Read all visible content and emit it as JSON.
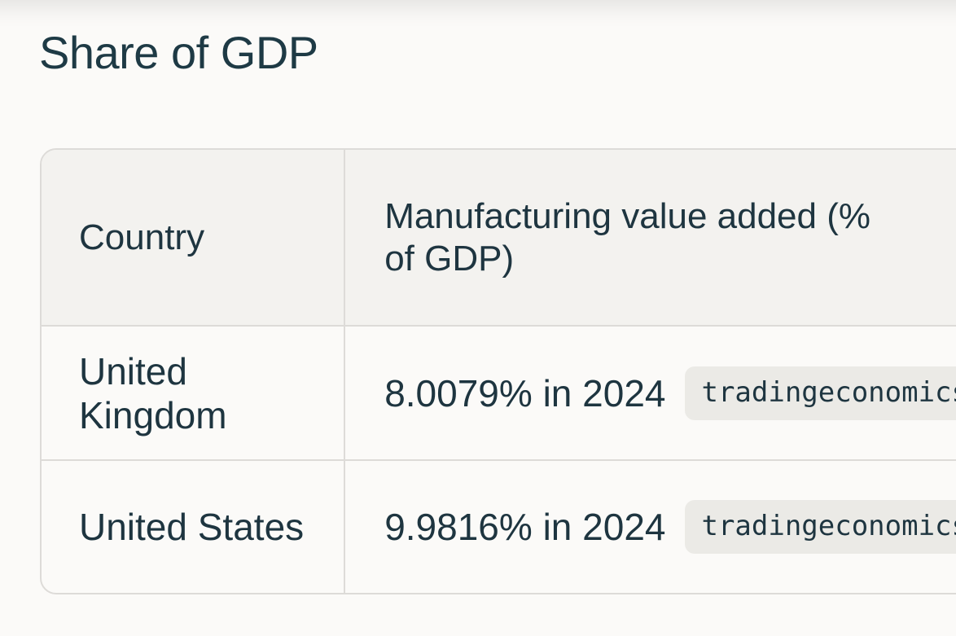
{
  "section": {
    "title": "Share of GDP"
  },
  "table": {
    "headers": {
      "country": "Country",
      "value": "Manufacturing value added (% of GDP)"
    },
    "rows": [
      {
        "country": "United Kingdom",
        "value": "8.0079% in 2024",
        "source": "tradingeconomics"
      },
      {
        "country": "United States",
        "value": "9.9816% in 2024",
        "source": "tradingeconomics"
      }
    ]
  }
}
